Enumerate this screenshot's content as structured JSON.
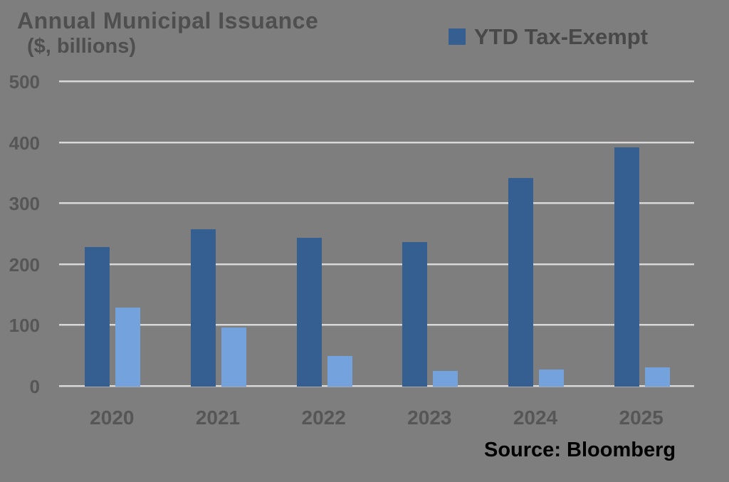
{
  "chart_data": {
    "type": "bar",
    "title": "Annual Municipal Issuance",
    "subtitle": "($, billions)",
    "source": "Source: Bloomberg",
    "categories": [
      "2020",
      "2021",
      "2022",
      "2023",
      "2024",
      "2025"
    ],
    "series": [
      {
        "name": "YTD Tax-Exempt",
        "color": "#365F91",
        "values": [
          229,
          258,
          244,
          237,
          342,
          393
        ]
      },
      {
        "name": "",
        "color": "#74A2DC",
        "values": [
          130,
          97,
          50,
          26,
          28,
          31
        ]
      }
    ],
    "legend": {
      "position": "top-right",
      "entries": [
        {
          "label": "YTD Tax-Exempt",
          "color": "#365F91"
        }
      ]
    },
    "ylim": [
      0,
      500
    ],
    "yticks": [
      0,
      100,
      200,
      300,
      400,
      500
    ],
    "grid": true,
    "colors": {
      "background": "#7E7E7E",
      "gridline": "#D8D8D8",
      "axis_text": "#565656",
      "title_text": "#4F4F4F",
      "source_text": "#000000"
    }
  }
}
